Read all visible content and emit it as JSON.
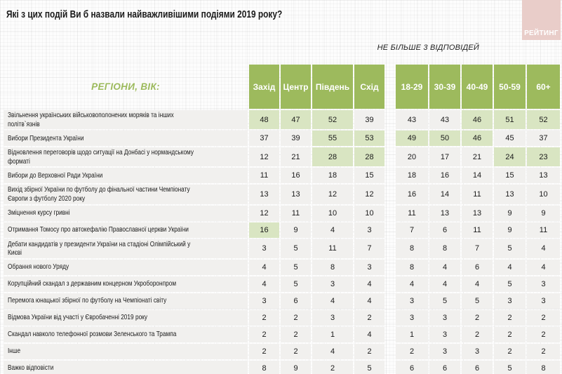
{
  "title": "Які з цих подій Ви б назвали найважливішими подіями 2019 року?",
  "subtitle": "НЕ БІЛЬШЕ 3 ВІДПОВІДЕЙ",
  "logo": {
    "text": "РЕЙТИНГ"
  },
  "table": {
    "corner_label": "РЕГІОНИ, ВІК:"
  },
  "colors": {
    "header_green": "#9dba5d",
    "highlight_green": "#d9e5c2",
    "cell_gray": "#f1f0ee",
    "logo_pink": "#e9cdc9",
    "accent_text_green": "#9cba5c"
  },
  "chart_data": {
    "type": "table",
    "title": "Які з цих подій Ви б назвали найважливішими подіями 2019 року?",
    "note": "НЕ БІЛЬШЕ 3 ВІДПОВІДЕЙ",
    "corner_label": "РЕГІОНИ, ВІК:",
    "columns": [
      "Захід",
      "Центр",
      "Південь",
      "Схід",
      "18-29",
      "30-39",
      "40-49",
      "50-59",
      "60+"
    ],
    "rows": [
      {
        "label": "Звільнення українських військовополонених моряків та інших політв`язнів",
        "values": [
          48,
          47,
          52,
          39,
          43,
          43,
          46,
          51,
          52
        ],
        "highlighted": [
          0,
          1,
          2,
          6,
          7,
          8
        ]
      },
      {
        "label": "Вибори Президента України",
        "values": [
          37,
          39,
          55,
          53,
          49,
          50,
          46,
          45,
          37
        ],
        "highlighted": [
          2,
          3,
          4,
          5,
          6
        ]
      },
      {
        "label": "Відновлення переговорів щодо ситуації на Донбасі у нормандському форматі",
        "values": [
          12,
          21,
          28,
          28,
          20,
          17,
          21,
          24,
          23
        ],
        "highlighted": [
          2,
          3,
          7,
          8
        ]
      },
      {
        "label": "Вибори до Верховної Ради України",
        "values": [
          11,
          16,
          18,
          15,
          18,
          16,
          14,
          15,
          13
        ],
        "highlighted": []
      },
      {
        "label": "Вихід збірної України по футболу до фінальної частини Чемпіонату Європи з футболу 2020 року",
        "values": [
          13,
          13,
          12,
          12,
          16,
          14,
          11,
          13,
          10
        ],
        "highlighted": []
      },
      {
        "label": "Зміцнення курсу гривні",
        "values": [
          12,
          11,
          10,
          10,
          11,
          13,
          13,
          9,
          9
        ],
        "highlighted": []
      },
      {
        "label": "Отримання Томосу про автокефалію Православної церкви України",
        "values": [
          16,
          9,
          4,
          3,
          7,
          6,
          11,
          9,
          11
        ],
        "highlighted": [
          0
        ]
      },
      {
        "label": "Дебати кандидатів у президенти України на стадіоні Олімпійський у Києві",
        "values": [
          3,
          5,
          11,
          7,
          8,
          8,
          7,
          5,
          4
        ],
        "highlighted": []
      },
      {
        "label": "Обрання нового Уряду",
        "values": [
          4,
          5,
          8,
          3,
          8,
          4,
          6,
          4,
          4
        ],
        "highlighted": []
      },
      {
        "label": "Корупційний скандал з державним концерном Укроборонпром",
        "values": [
          4,
          5,
          3,
          4,
          4,
          4,
          4,
          5,
          3
        ],
        "highlighted": []
      },
      {
        "label": "Перемога юнацької збірної по футболу на Чемпіонаті світу",
        "values": [
          3,
          6,
          4,
          4,
          3,
          5,
          5,
          3,
          3
        ],
        "highlighted": []
      },
      {
        "label": "Відмова України від участі у Євробаченні 2019 року",
        "values": [
          2,
          2,
          3,
          2,
          3,
          3,
          2,
          2,
          2
        ],
        "highlighted": []
      },
      {
        "label": "Скандал навколо телефонної розмови Зеленського та Трампа",
        "values": [
          2,
          2,
          1,
          4,
          1,
          3,
          2,
          2,
          2
        ],
        "highlighted": []
      },
      {
        "label": "Інше",
        "values": [
          2,
          2,
          4,
          2,
          2,
          3,
          3,
          2,
          2
        ],
        "highlighted": []
      },
      {
        "label": "Важко відповісти",
        "values": [
          8,
          9,
          2,
          5,
          6,
          6,
          6,
          5,
          8
        ],
        "highlighted": []
      }
    ]
  }
}
